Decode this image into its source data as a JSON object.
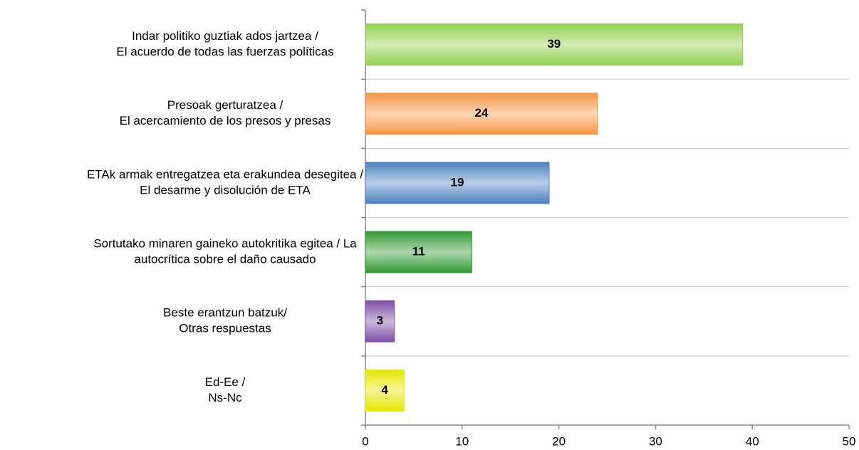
{
  "chart_data": {
    "type": "bar",
    "orientation": "horizontal",
    "categories": [
      [
        "Indar politiko guztiak ados jartzea /",
        "El acuerdo de todas las fuerzas políticas"
      ],
      [
        "Presoak gerturatzea /",
        "El acercamiento de los presos y presas"
      ],
      [
        "ETAk armak entregatzea eta erakundea desegitea /",
        "El desarme y disolución de ETA"
      ],
      [
        "Sortutako minaren gaineko autokritika egitea / La",
        "autocrítica sobre el daño causado"
      ],
      [
        "Beste erantzun batzuk/",
        "Otras respuestas"
      ],
      [
        "Ed-Ee /",
        "Ns-Nc"
      ]
    ],
    "values": [
      39,
      24,
      19,
      11,
      3,
      4
    ],
    "colors": [
      "#92d050",
      "#f79646",
      "#4f81bd",
      "#339933",
      "#7f4fa6",
      "#e6e600"
    ],
    "xlim": [
      0,
      50
    ],
    "xticks": [
      0,
      10,
      20,
      30,
      40,
      50
    ],
    "grid": true
  }
}
